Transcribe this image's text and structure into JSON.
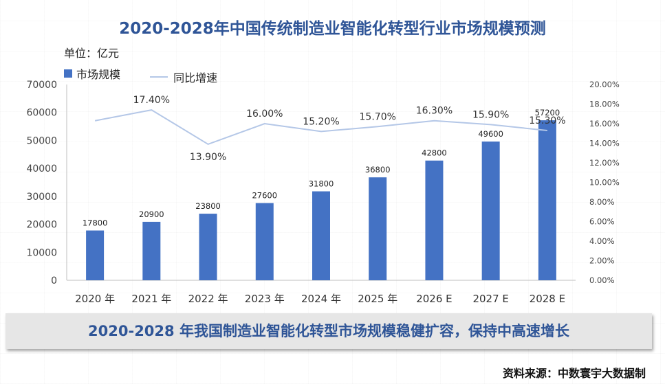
{
  "title": "2020-2028年中国传统制造业智能化转型行业市场规模预测",
  "unit_label": "单位：亿元",
  "banner": "2020-2028 年我国制造业智能化转型市场规模稳健扩容，保持中高速增长",
  "source": "资料来源：中数寰宇大数据制",
  "colors": {
    "bar": "#4472c4",
    "line": "#b4c7e7",
    "title": "#2f5597"
  },
  "chart_data": {
    "type": "bar",
    "categories": [
      "2020 年",
      "2021 年",
      "2022 年",
      "2023 年",
      "2024 年",
      "2025 年",
      "2026 E",
      "2027 E",
      "2028 E"
    ],
    "series": [
      {
        "name": "市场规模",
        "type": "bar",
        "axis": "left",
        "values": [
          17800,
          20900,
          23800,
          27600,
          31800,
          36800,
          42800,
          49600,
          57200
        ],
        "labels": [
          "17800",
          "20900",
          "23800",
          "27600",
          "31800",
          "36800",
          "42800",
          "49600",
          "57200"
        ]
      },
      {
        "name": "同比增速",
        "type": "line",
        "axis": "right",
        "values": [
          16.3,
          17.4,
          13.9,
          16.0,
          15.2,
          15.7,
          16.3,
          15.9,
          15.3
        ],
        "labels": [
          "",
          "17.40%",
          "13.90%",
          "16.00%",
          "15.20%",
          "15.70%",
          "16.30%",
          "15.90%",
          "15.30%"
        ]
      }
    ],
    "y_left": {
      "min": 0,
      "max": 70000,
      "ticks": [
        "0",
        "10000",
        "20000",
        "30000",
        "40000",
        "50000",
        "60000",
        "70000"
      ]
    },
    "y_right": {
      "min": 0,
      "max": 20,
      "ticks": [
        "0.00%",
        "2.00%",
        "4.00%",
        "6.00%",
        "8.00%",
        "10.00%",
        "12.00%",
        "14.00%",
        "16.00%",
        "18.00%",
        "20.00%"
      ]
    },
    "legend_position": "top-left",
    "grid": false
  }
}
